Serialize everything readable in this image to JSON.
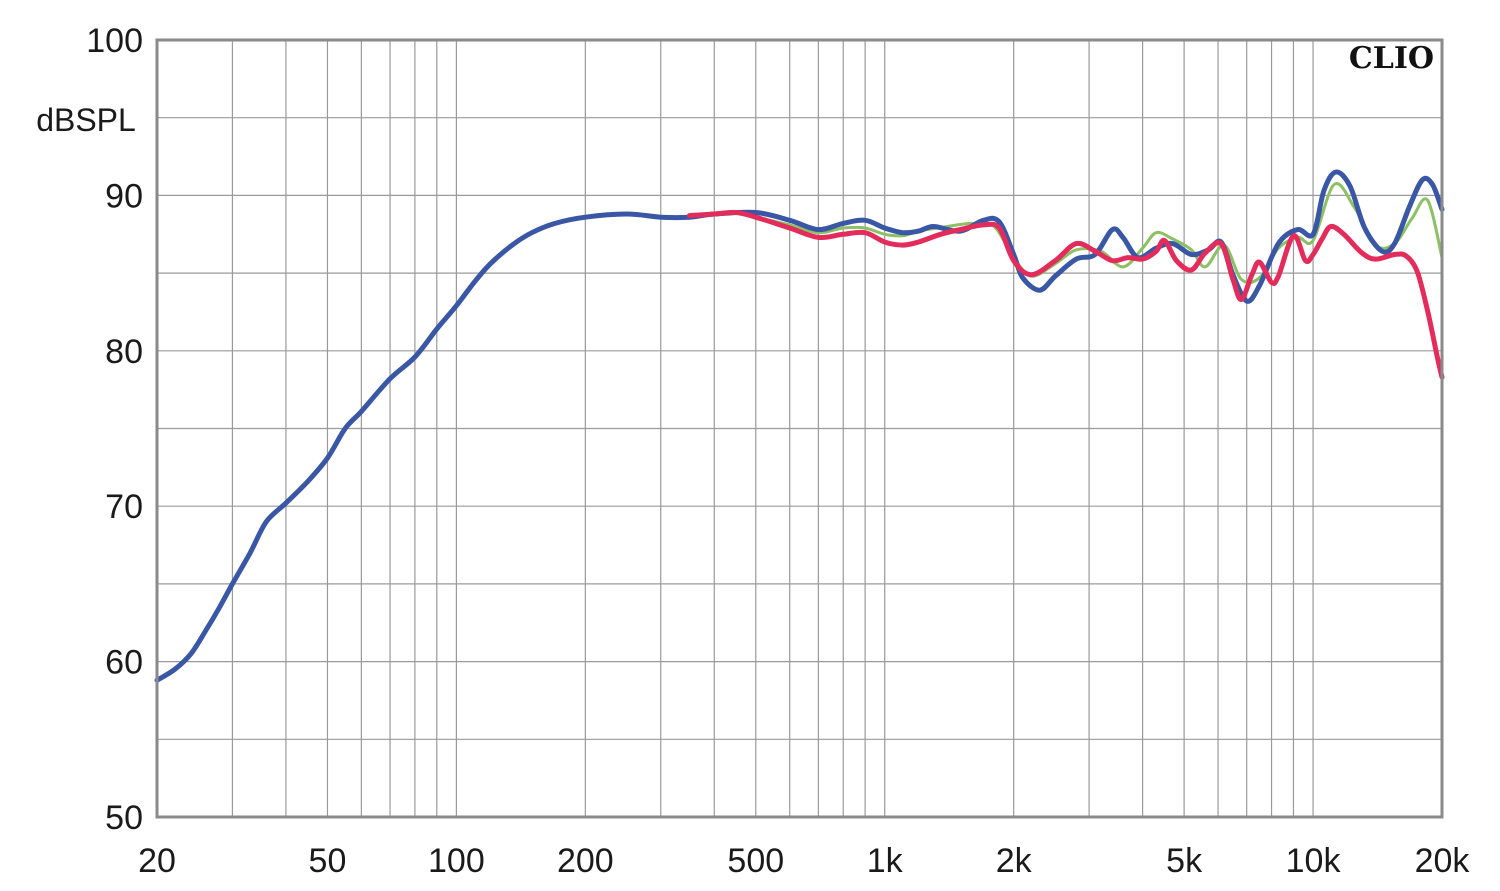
{
  "chart_data": {
    "type": "line",
    "xscale": "log",
    "xlim": [
      20,
      20000
    ],
    "ylim": [
      50,
      100
    ],
    "ylabel": "dBSPL",
    "brand": "CLIO",
    "grid": true,
    "y_ticks": [
      50,
      60,
      70,
      80,
      90,
      100
    ],
    "x_ticks": [
      {
        "value": 20,
        "label": "20"
      },
      {
        "value": 50,
        "label": "50"
      },
      {
        "value": 100,
        "label": "100"
      },
      {
        "value": 200,
        "label": "200"
      },
      {
        "value": 500,
        "label": "500"
      },
      {
        "value": 1000,
        "label": "1k"
      },
      {
        "value": 2000,
        "label": "2k"
      },
      {
        "value": 5000,
        "label": "5k"
      },
      {
        "value": 10000,
        "label": "10k"
      },
      {
        "value": 20000,
        "label": "20k"
      }
    ],
    "series": [
      {
        "color": "#8cc063",
        "width": 3,
        "points": [
          [
            350,
            88.7
          ],
          [
            450,
            88.9
          ],
          [
            500,
            88.6
          ],
          [
            600,
            88.1
          ],
          [
            700,
            87.6
          ],
          [
            800,
            87.9
          ],
          [
            900,
            87.9
          ],
          [
            1000,
            87.5
          ],
          [
            1100,
            87.4
          ],
          [
            1200,
            87.7
          ],
          [
            1400,
            88.0
          ],
          [
            1600,
            88.2
          ],
          [
            1800,
            88.0
          ],
          [
            2000,
            86.0
          ],
          [
            2200,
            84.8
          ],
          [
            2500,
            85.6
          ],
          [
            2800,
            86.5
          ],
          [
            3200,
            86.4
          ],
          [
            3600,
            85.4
          ],
          [
            4000,
            86.6
          ],
          [
            4300,
            87.6
          ],
          [
            4700,
            87.2
          ],
          [
            5200,
            86.5
          ],
          [
            5600,
            85.4
          ],
          [
            6200,
            86.8
          ],
          [
            6800,
            84.6
          ],
          [
            7500,
            84.7
          ],
          [
            8300,
            86.6
          ],
          [
            9200,
            87.3
          ],
          [
            10000,
            87.1
          ],
          [
            11200,
            90.7
          ],
          [
            12500,
            89.2
          ],
          [
            14000,
            86.8
          ],
          [
            15500,
            86.9
          ],
          [
            17000,
            88.5
          ],
          [
            18500,
            89.7
          ],
          [
            20000,
            86.0
          ]
        ]
      },
      {
        "color": "#3a57a6",
        "width": 5,
        "points": [
          [
            20,
            58.8
          ],
          [
            22,
            59.5
          ],
          [
            24,
            60.5
          ],
          [
            26,
            62.0
          ],
          [
            28,
            63.5
          ],
          [
            30,
            65.0
          ],
          [
            33,
            67.0
          ],
          [
            36,
            69.0
          ],
          [
            40,
            70.2
          ],
          [
            45,
            71.6
          ],
          [
            50,
            73.1
          ],
          [
            55,
            75.0
          ],
          [
            60,
            76.1
          ],
          [
            70,
            78.2
          ],
          [
            80,
            79.6
          ],
          [
            90,
            81.4
          ],
          [
            100,
            82.9
          ],
          [
            110,
            84.4
          ],
          [
            120,
            85.6
          ],
          [
            135,
            86.8
          ],
          [
            150,
            87.6
          ],
          [
            170,
            88.2
          ],
          [
            200,
            88.6
          ],
          [
            250,
            88.8
          ],
          [
            300,
            88.6
          ],
          [
            350,
            88.6
          ],
          [
            400,
            88.8
          ],
          [
            500,
            88.9
          ],
          [
            600,
            88.4
          ],
          [
            700,
            87.8
          ],
          [
            800,
            88.2
          ],
          [
            900,
            88.4
          ],
          [
            1000,
            87.9
          ],
          [
            1100,
            87.6
          ],
          [
            1200,
            87.7
          ],
          [
            1300,
            88.0
          ],
          [
            1500,
            87.7
          ],
          [
            1700,
            88.4
          ],
          [
            1850,
            88.3
          ],
          [
            2000,
            86.2
          ],
          [
            2100,
            84.7
          ],
          [
            2300,
            83.9
          ],
          [
            2500,
            84.8
          ],
          [
            2800,
            85.9
          ],
          [
            3100,
            86.2
          ],
          [
            3400,
            87.8
          ],
          [
            3600,
            87.3
          ],
          [
            3900,
            86.0
          ],
          [
            4300,
            86.6
          ],
          [
            4700,
            86.9
          ],
          [
            5200,
            86.2
          ],
          [
            5700,
            86.5
          ],
          [
            6100,
            87.0
          ],
          [
            6500,
            84.9
          ],
          [
            7000,
            83.2
          ],
          [
            7500,
            84.2
          ],
          [
            8300,
            86.9
          ],
          [
            9200,
            87.8
          ],
          [
            10000,
            87.5
          ],
          [
            10600,
            90.3
          ],
          [
            11300,
            91.5
          ],
          [
            12200,
            90.6
          ],
          [
            13200,
            87.9
          ],
          [
            14500,
            86.4
          ],
          [
            15500,
            86.9
          ],
          [
            16800,
            89.3
          ],
          [
            18000,
            91.0
          ],
          [
            19000,
            90.7
          ],
          [
            20000,
            89.1
          ]
        ]
      },
      {
        "color": "#e32c5b",
        "width": 5,
        "points": [
          [
            350,
            88.7
          ],
          [
            400,
            88.8
          ],
          [
            450,
            88.9
          ],
          [
            500,
            88.6
          ],
          [
            600,
            87.9
          ],
          [
            700,
            87.3
          ],
          [
            800,
            87.5
          ],
          [
            900,
            87.6
          ],
          [
            1000,
            87.0
          ],
          [
            1100,
            86.8
          ],
          [
            1200,
            87.0
          ],
          [
            1350,
            87.5
          ],
          [
            1500,
            87.8
          ],
          [
            1700,
            88.1
          ],
          [
            1850,
            87.9
          ],
          [
            2000,
            85.8
          ],
          [
            2200,
            84.9
          ],
          [
            2500,
            85.8
          ],
          [
            2800,
            86.9
          ],
          [
            3100,
            86.4
          ],
          [
            3400,
            85.8
          ],
          [
            3700,
            86.0
          ],
          [
            4000,
            85.9
          ],
          [
            4300,
            86.4
          ],
          [
            4500,
            87.1
          ],
          [
            4800,
            85.8
          ],
          [
            5200,
            85.2
          ],
          [
            5600,
            86.3
          ],
          [
            6100,
            86.9
          ],
          [
            6500,
            84.6
          ],
          [
            6800,
            83.3
          ],
          [
            7200,
            84.9
          ],
          [
            7500,
            85.7
          ],
          [
            8000,
            84.4
          ],
          [
            8300,
            84.8
          ],
          [
            9000,
            87.4
          ],
          [
            9600,
            85.8
          ],
          [
            10000,
            86.2
          ],
          [
            10500,
            87.2
          ],
          [
            11000,
            88.0
          ],
          [
            11800,
            87.5
          ],
          [
            13000,
            86.3
          ],
          [
            14000,
            85.9
          ],
          [
            15500,
            86.2
          ],
          [
            16500,
            86.1
          ],
          [
            17500,
            85.1
          ],
          [
            18500,
            82.6
          ],
          [
            19500,
            79.6
          ],
          [
            20000,
            78.3
          ]
        ]
      }
    ]
  }
}
